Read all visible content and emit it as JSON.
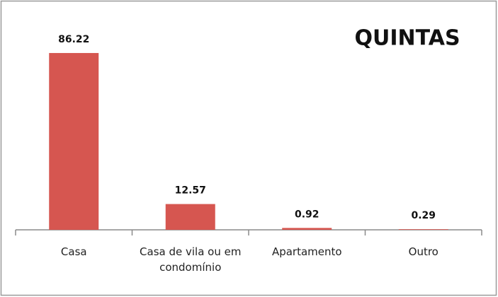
{
  "chart_data": {
    "type": "bar",
    "title": "QUINTAS",
    "categories": [
      "Casa",
      "Casa de vila ou em condomínio",
      "Apartamento",
      "Outro"
    ],
    "values": [
      86.22,
      12.57,
      0.92,
      0.29
    ],
    "color": "#d65650",
    "ylim": [
      0,
      100
    ]
  }
}
